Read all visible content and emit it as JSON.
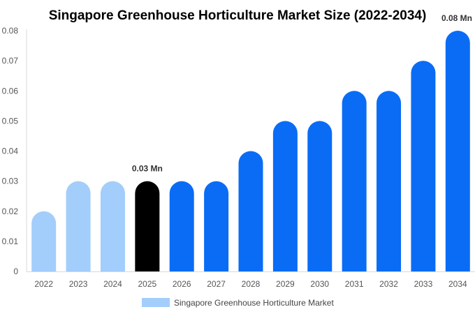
{
  "chart_data": {
    "type": "bar",
    "title": "Singapore Greenhouse Horticulture Market Size (2022-2034)",
    "xlabel": "",
    "ylabel": "",
    "categories": [
      "2022",
      "2023",
      "2024",
      "2025",
      "2026",
      "2027",
      "2028",
      "2029",
      "2030",
      "2031",
      "2032",
      "2033",
      "2034"
    ],
    "series": [
      {
        "name": "Singapore Greenhouse Horticulture Market",
        "values": [
          0.02,
          0.03,
          0.03,
          0.03,
          0.03,
          0.03,
          0.04,
          0.05,
          0.05,
          0.06,
          0.06,
          0.07,
          0.08
        ]
      }
    ],
    "ylim": [
      0,
      0.08
    ],
    "yticks": [
      "0",
      "0.01",
      "0.02",
      "0.03",
      "0.04",
      "0.05",
      "0.06",
      "0.07",
      "0.08"
    ],
    "data_labels": [
      {
        "category": "2025",
        "text": "0.03 Mn"
      },
      {
        "category": "2034",
        "text": "0.08 Mn"
      }
    ],
    "bar_colors": {
      "historical": "#a3cdfb",
      "base_year": "#000000",
      "forecast": "#0a6cf5"
    },
    "bar_color_groups": [
      "historical",
      "historical",
      "historical",
      "base_year",
      "forecast",
      "forecast",
      "forecast",
      "forecast",
      "forecast",
      "forecast",
      "forecast",
      "forecast",
      "forecast"
    ],
    "legend": {
      "position": "bottom",
      "color": "#a3cdfb"
    },
    "grid": false
  }
}
